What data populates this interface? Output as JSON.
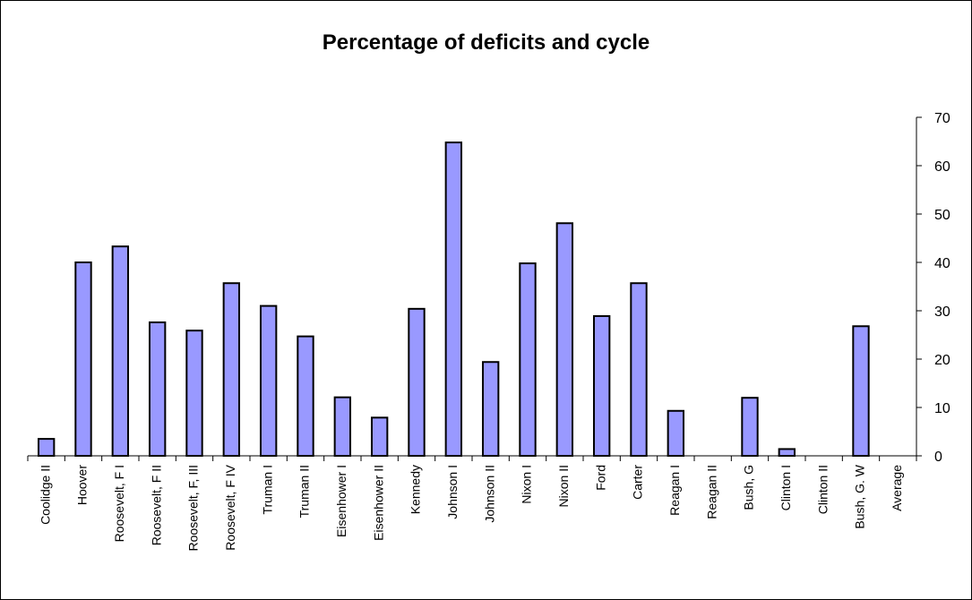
{
  "chart_data": {
    "type": "bar",
    "title": "Percentage of deficits and cycle",
    "xlabel": "",
    "ylabel": "",
    "ylim": [
      0,
      70
    ],
    "y_ticks": [
      0,
      10,
      20,
      30,
      40,
      50,
      60,
      70
    ],
    "y_axis_side": "right",
    "grid": false,
    "legend": "none",
    "bar_color": "#9999ff",
    "bar_border_color": "#000000",
    "categories": [
      "Coolidge II",
      "Hoover",
      "Roosevelt, F I",
      "Roosevelt, F II",
      "Roosevelt, F, III",
      "Roosevelt, F IV",
      "Truman I",
      "Truman II",
      "Eisenhower I",
      "Eisenhower II",
      "Kennedy",
      "Johnson I",
      "Johnson II",
      "Nixon I",
      "Nixon II",
      "Ford",
      "Carter",
      "Reagan I",
      "Reagan II",
      "Bush, G",
      "Clinton I",
      "Clinton II",
      "Bush, G. W",
      "Average"
    ],
    "values": [
      3.5,
      40,
      43.3,
      27.6,
      25.9,
      35.7,
      31,
      24.7,
      12.1,
      7.9,
      30.4,
      64.8,
      19.4,
      39.8,
      48.1,
      28.9,
      35.7,
      9.3,
      0,
      12,
      1.4,
      0,
      26.8,
      0
    ]
  }
}
